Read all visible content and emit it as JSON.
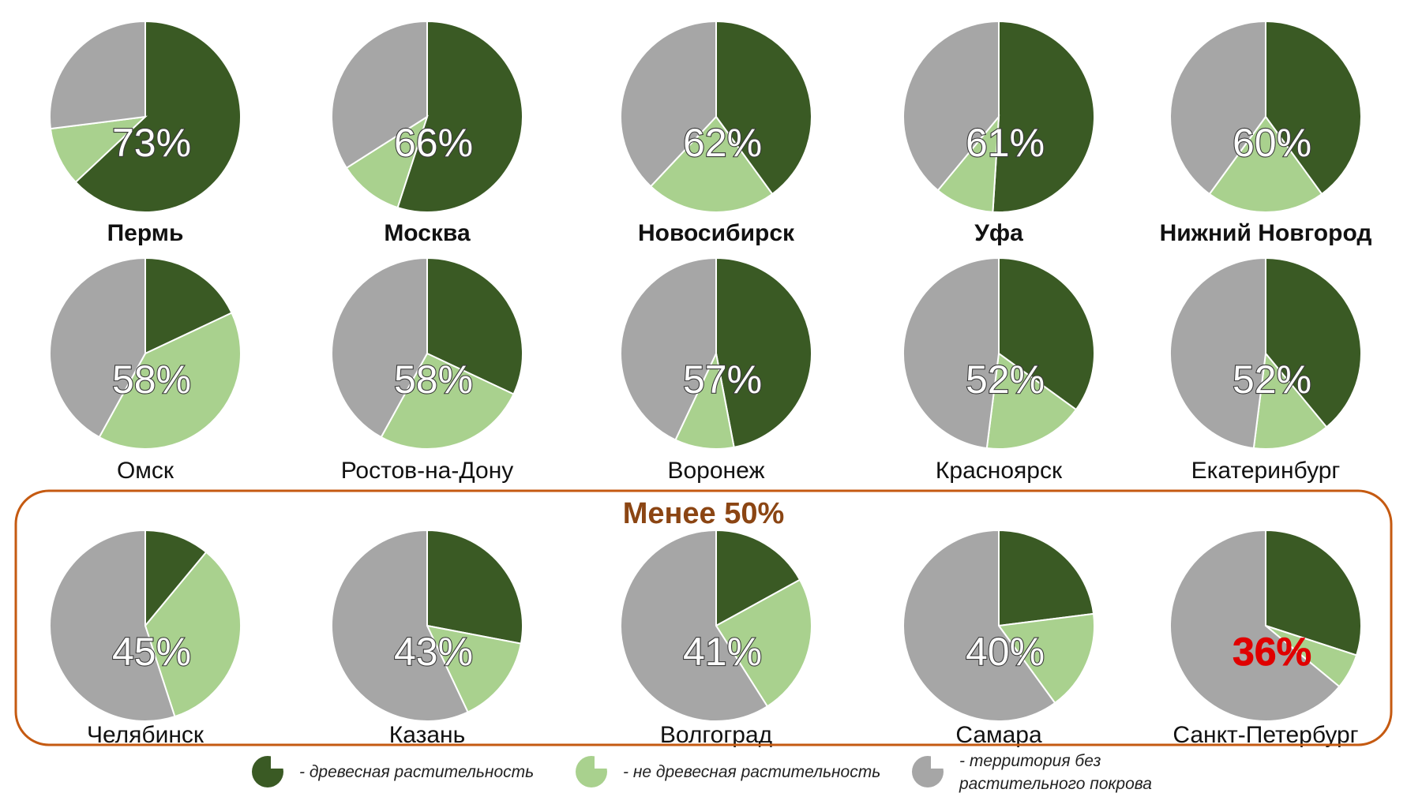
{
  "colors": {
    "wood": "#3a5a24",
    "nonwood": "#a9d18e",
    "bare": "#a6a6a6",
    "group_border": "#c55a11",
    "group_title": "#8b4513",
    "alert": "#e00000"
  },
  "group_title": "Менее 50%",
  "legend": [
    {
      "key": "wood",
      "text": "- древесная растительность"
    },
    {
      "key": "nonwood",
      "text": "- не древесная растительность"
    },
    {
      "key": "bare",
      "text_lines": [
        "- территория без",
        "растительного покрова"
      ]
    }
  ],
  "chart_data": {
    "type": "pie",
    "segments": [
      "древесная растительность",
      "не древесная растительность",
      "территория без растительного покрова"
    ],
    "charts": [
      {
        "city": "Пермь",
        "total_label": "73%",
        "wood": 63,
        "nonwood": 10,
        "bare": 27,
        "bold": true
      },
      {
        "city": "Москва",
        "total_label": "66%",
        "wood": 55,
        "nonwood": 11,
        "bare": 34,
        "bold": true
      },
      {
        "city": "Новосибирск",
        "total_label": "62%",
        "wood": 40,
        "nonwood": 22,
        "bare": 38,
        "bold": true
      },
      {
        "city": "Уфа",
        "total_label": "61%",
        "wood": 51,
        "nonwood": 10,
        "bare": 39,
        "bold": true
      },
      {
        "city": "Нижний Новгород",
        "total_label": "60%",
        "wood": 40,
        "nonwood": 20,
        "bare": 40,
        "bold": true
      },
      {
        "city": "Омск",
        "total_label": "58%",
        "wood": 18,
        "nonwood": 40,
        "bare": 42
      },
      {
        "city": "Ростов-на-Дону",
        "total_label": "58%",
        "wood": 32,
        "nonwood": 26,
        "bare": 42
      },
      {
        "city": "Воронеж",
        "total_label": "57%",
        "wood": 47,
        "nonwood": 10,
        "bare": 43
      },
      {
        "city": "Красноярск",
        "total_label": "52%",
        "wood": 35,
        "nonwood": 17,
        "bare": 48
      },
      {
        "city": "Екатеринбург",
        "total_label": "52%",
        "wood": 39,
        "nonwood": 13,
        "bare": 48
      },
      {
        "city": "Челябинск",
        "total_label": "45%",
        "wood": 11,
        "nonwood": 34,
        "bare": 55
      },
      {
        "city": "Казань",
        "total_label": "43%",
        "wood": 28,
        "nonwood": 15,
        "bare": 57
      },
      {
        "city": "Волгоград",
        "total_label": "41%",
        "wood": 17,
        "nonwood": 24,
        "bare": 59
      },
      {
        "city": "Самара",
        "total_label": "40%",
        "wood": 23,
        "nonwood": 17,
        "bare": 60
      },
      {
        "city": "Санкт-Петербург",
        "total_label": "36%",
        "wood": 30,
        "nonwood": 6,
        "bare": 64,
        "alert": true
      }
    ]
  }
}
